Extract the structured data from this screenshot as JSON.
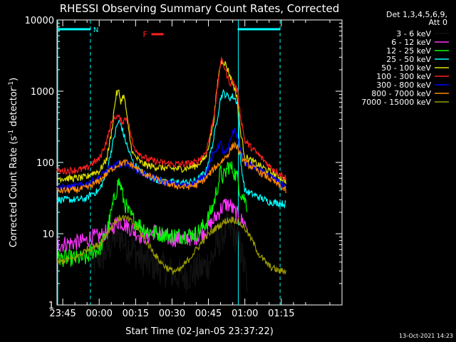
{
  "chart_data": {
    "type": "line",
    "title": "RHESSI Observing Summary Count Rates, Corrected",
    "xlabel": "Start Time (02-Jan-05 23:37:22)",
    "ylabel_main": "Corrected Count Rate (s",
    "ylabel_sup": "-1",
    "ylabel_tail": " detector",
    "ylabel_sup2": "-1",
    "ylabel_close": ")",
    "y_scale": "log",
    "ylim": [
      1,
      10000
    ],
    "xlim_minutes": [
      -17.37,
      100
    ],
    "x_ticks": [
      {
        "label": "23:45",
        "t": -15
      },
      {
        "label": "00:00",
        "t": 0
      },
      {
        "label": "00:15",
        "t": 15
      },
      {
        "label": "00:30",
        "t": 30
      },
      {
        "label": "00:45",
        "t": 45
      },
      {
        "label": "01:00",
        "t": 60
      },
      {
        "label": "01:15",
        "t": 75
      }
    ],
    "y_ticks": [
      {
        "label": "1",
        "v": 1
      },
      {
        "label": "10",
        "v": 10
      },
      {
        "label": "100",
        "v": 100
      },
      {
        "label": "1000",
        "v": 1000
      },
      {
        "label": "10000",
        "v": 10000
      }
    ],
    "legend_header": [
      "Det 1,3,4,5,6,9,",
      "Att 0"
    ],
    "legend_position": "right",
    "flag_label_F": "F",
    "flag_label_N": "N",
    "timestamp": "13-Oct-2021 14:23",
    "night_intervals": [
      [
        -17.37,
        -3.6
      ],
      [
        57,
        74.5
      ]
    ],
    "flare_interval": [
      21.5,
      26.5
    ],
    "series": [
      {
        "name": "3 - 6 keV",
        "color": "#000000",
        "t": [
          -3.4,
          -1,
          2,
          4,
          6,
          8,
          9,
          11,
          13,
          15,
          17,
          20,
          24,
          28,
          32,
          36,
          40,
          44,
          47,
          50,
          53,
          55,
          56.5,
          58,
          59,
          60,
          61
        ],
        "v": [
          3.5,
          4.5,
          5,
          6.5,
          8.5,
          10,
          9,
          7,
          6.5,
          5.5,
          4.5,
          4,
          3.5,
          3,
          2.6,
          2.6,
          3,
          3.5,
          5,
          9,
          12,
          11,
          9,
          7,
          4.5,
          3,
          2
        ]
      },
      {
        "name": "6 - 12 keV",
        "color": "#ff33ff",
        "t": [
          -17.37,
          -10,
          -5,
          -3.6,
          0,
          3,
          6,
          8,
          10,
          12,
          14,
          17,
          20,
          23,
          26,
          30,
          35,
          40,
          44,
          47,
          50,
          52,
          54,
          55,
          57,
          58,
          60,
          61
        ],
        "v": [
          7,
          7.5,
          8,
          9,
          9,
          10.5,
          13,
          15,
          14,
          12.5,
          11,
          9.5,
          9,
          11,
          9,
          8.5,
          8.5,
          9,
          11,
          15,
          22,
          26,
          25,
          22,
          18,
          16,
          14,
          12
        ]
      },
      {
        "name": "12 - 25 keV",
        "color": "#00ff00",
        "t": [
          -17.37,
          -10,
          -5,
          -3.6,
          0,
          3,
          5,
          7,
          8,
          9,
          10,
          12,
          14,
          17,
          20,
          25,
          30,
          35,
          40,
          44,
          47,
          49,
          50,
          51,
          52,
          53,
          54,
          55,
          57,
          58,
          60,
          61
        ],
        "v": [
          4.5,
          4.5,
          4.5,
          5.5,
          6,
          10,
          20,
          40,
          55,
          45,
          30,
          20,
          16,
          13,
          11,
          10,
          9.5,
          9.5,
          10,
          14,
          25,
          50,
          75,
          60,
          70,
          90,
          85,
          80,
          60,
          40,
          30,
          25
        ]
      },
      {
        "name": "25 - 50 keV",
        "color": "#00ffff",
        "t": [
          -17.37,
          -10,
          -5,
          -3.6,
          0,
          3,
          5,
          7,
          8,
          9,
          10,
          12,
          14,
          17,
          20,
          25,
          30,
          35,
          40,
          44,
          47,
          49,
          50,
          51,
          52,
          53,
          54,
          55,
          57,
          58,
          60,
          70,
          77
        ],
        "v": [
          30,
          30,
          31,
          36,
          40,
          70,
          150,
          300,
          380,
          340,
          250,
          150,
          100,
          75,
          65,
          55,
          53,
          52,
          55,
          75,
          200,
          500,
          800,
          950,
          900,
          850,
          800,
          850,
          700,
          120,
          40,
          28,
          26
        ]
      },
      {
        "name": "50 - 100 keV",
        "color": "#e0e000",
        "t": [
          -17.37,
          -10,
          -5,
          -3.6,
          0,
          3,
          5,
          6,
          7,
          8,
          9,
          10,
          11,
          12,
          13,
          14,
          17,
          20,
          25,
          30,
          35,
          40,
          44,
          47,
          49,
          50,
          51,
          52,
          53,
          54,
          55,
          57,
          58,
          60,
          70,
          77
        ],
        "v": [
          60,
          60,
          62,
          70,
          75,
          110,
          250,
          500,
          900,
          1000,
          700,
          900,
          600,
          300,
          180,
          130,
          100,
          90,
          85,
          82,
          82,
          90,
          120,
          350,
          1500,
          2500,
          2700,
          2400,
          2000,
          1600,
          1300,
          800,
          300,
          120,
          75,
          55
        ]
      },
      {
        "name": "100 - 300 keV",
        "color": "#ff2020",
        "t": [
          -17.37,
          -10,
          -5,
          -3.6,
          0,
          3,
          5,
          7,
          8,
          9,
          10,
          11,
          12,
          13,
          14,
          17,
          20,
          25,
          30,
          35,
          40,
          44,
          47,
          49,
          50,
          51,
          52,
          53,
          54,
          55,
          57,
          58,
          60,
          70,
          77
        ],
        "v": [
          75,
          78,
          82,
          95,
          110,
          200,
          350,
          450,
          430,
          380,
          380,
          430,
          360,
          250,
          170,
          130,
          110,
          100,
          95,
          95,
          100,
          140,
          400,
          1300,
          2700,
          2500,
          2000,
          1500,
          1300,
          1400,
          1000,
          500,
          200,
          90,
          60
        ]
      },
      {
        "name": "300 - 800 keV",
        "color": "#0000ff",
        "t": [
          -17.37,
          -10,
          -5,
          0,
          5,
          8,
          12,
          14,
          17,
          20,
          25,
          30,
          35,
          40,
          44,
          47,
          49,
          50,
          51,
          52,
          53,
          54,
          55,
          56,
          57,
          58,
          60,
          70,
          77
        ],
        "v": [
          44,
          46,
          50,
          62,
          85,
          95,
          95,
          85,
          72,
          65,
          55,
          50,
          48,
          52,
          70,
          130,
          170,
          190,
          140,
          130,
          150,
          200,
          280,
          270,
          230,
          150,
          100,
          65,
          45
        ]
      },
      {
        "name": "800 - 7000 keV",
        "color": "#ff8800",
        "t": [
          -17.37,
          -10,
          -5,
          0,
          5,
          8,
          11,
          14,
          17,
          20,
          25,
          30,
          35,
          40,
          44,
          47,
          50,
          53,
          55,
          56,
          57,
          58,
          60,
          70,
          77
        ],
        "v": [
          40,
          41,
          44,
          55,
          80,
          95,
          100,
          90,
          75,
          65,
          55,
          48,
          45,
          48,
          60,
          80,
          100,
          130,
          170,
          180,
          160,
          130,
          100,
          60,
          40
        ]
      },
      {
        "name": "7000 - 15000 keV",
        "color": "#999900",
        "t": [
          -17.37,
          -10,
          -5,
          0,
          3,
          6,
          9,
          12,
          15,
          18,
          21,
          24,
          27,
          30,
          33,
          36,
          40,
          44,
          48,
          52,
          55,
          57,
          60,
          63,
          66,
          70,
          74,
          77
        ],
        "v": [
          4,
          4.5,
          6,
          7,
          10,
          14,
          17,
          16,
          13,
          9,
          6.5,
          4.5,
          3.5,
          3,
          3,
          4,
          6,
          9,
          12,
          15,
          16,
          15,
          12,
          8,
          5,
          3.5,
          3,
          3
        ]
      }
    ]
  }
}
